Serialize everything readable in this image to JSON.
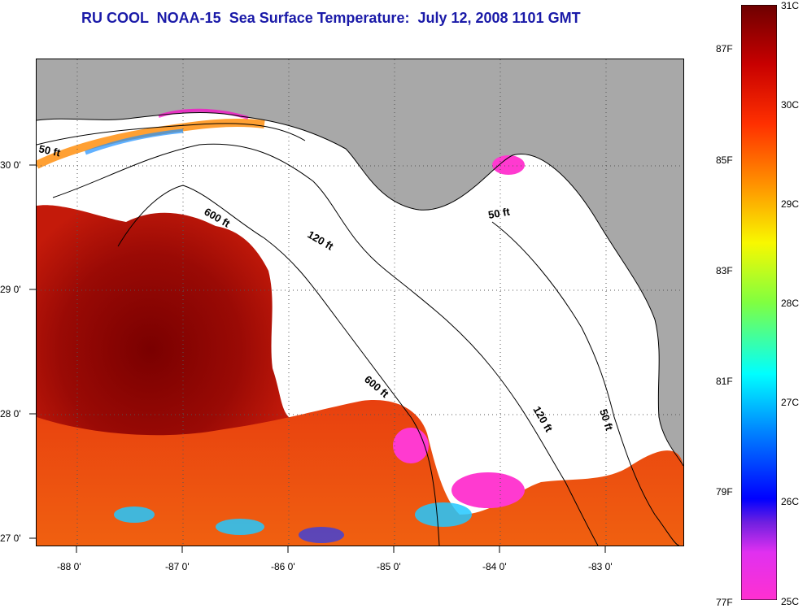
{
  "title": "RU COOL  NOAA-15  Sea Surface Temperature:  July 12, 2008 1101 GMT",
  "map": {
    "x_ticks": [
      "-88 0'",
      "-87 0'",
      "-86 0'",
      "-85 0'",
      "-84 0'",
      "-83 0'"
    ],
    "y_ticks": [
      "30 0'",
      "29 0'",
      "28 0'",
      "27 0'"
    ],
    "contour_labels": [
      "50 ft",
      "600 ft",
      "120 ft",
      "50 ft",
      "600 ft",
      "120 ft",
      "50 ft"
    ]
  },
  "colorbar": {
    "celsius_labels": [
      "31C",
      "30C",
      "29C",
      "28C",
      "27C",
      "26C",
      "25C"
    ],
    "fahrenheit_labels": [
      "87F",
      "85F",
      "83F",
      "81F",
      "79F",
      "77F"
    ]
  },
  "colors": {
    "land": "#a8a8a8",
    "cloud": "#ffffff",
    "title": "#1a1aa8"
  }
}
